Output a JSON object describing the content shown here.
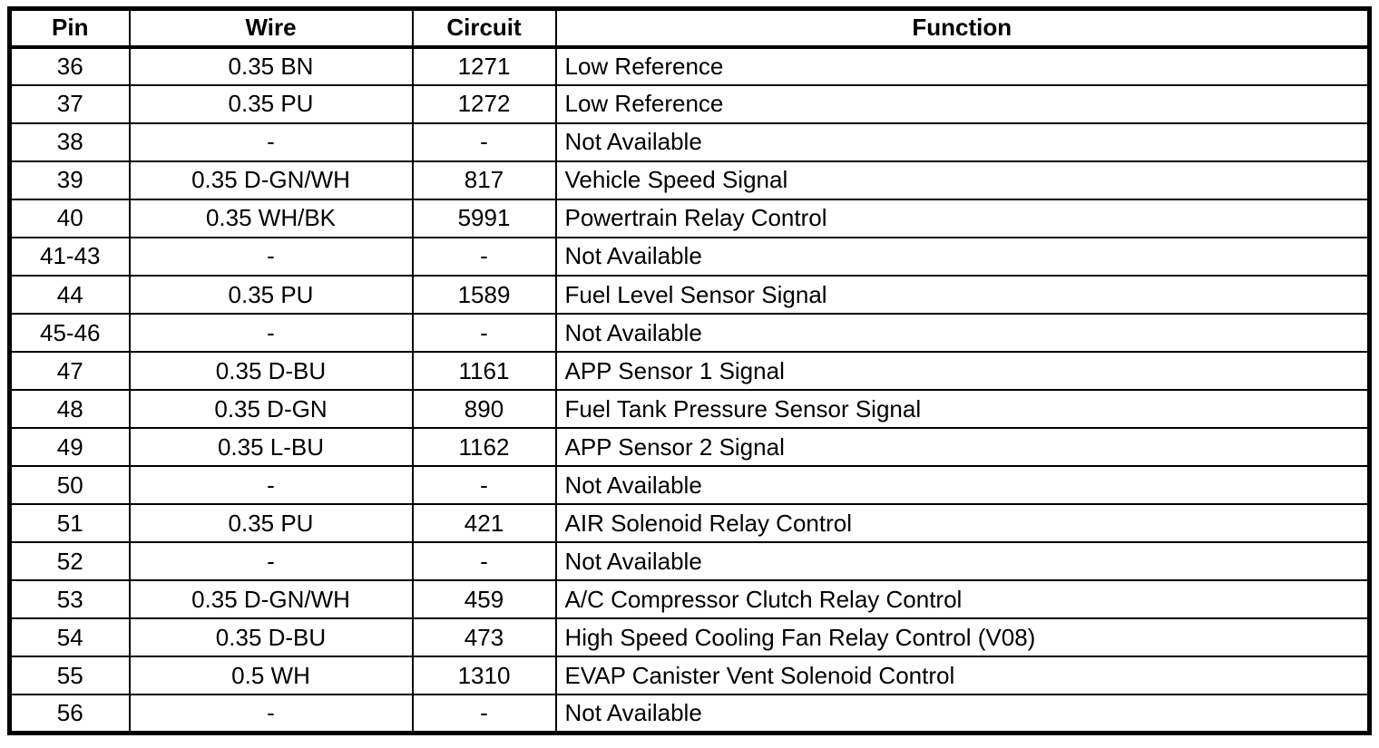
{
  "table": {
    "title": "connector-pinout-table",
    "columns": [
      {
        "key": "pin",
        "label": "Pin"
      },
      {
        "key": "wire",
        "label": "Wire"
      },
      {
        "key": "circuit",
        "label": "Circuit"
      },
      {
        "key": "function",
        "label": "Function"
      }
    ],
    "rows": [
      {
        "pin": "36",
        "wire": "0.35 BN",
        "circuit": "1271",
        "function": "Low Reference"
      },
      {
        "pin": "37",
        "wire": "0.35 PU",
        "circuit": "1272",
        "function": "Low Reference"
      },
      {
        "pin": "38",
        "wire": "-",
        "circuit": "-",
        "function": "Not Available"
      },
      {
        "pin": "39",
        "wire": "0.35 D-GN/WH",
        "circuit": "817",
        "function": "Vehicle Speed Signal"
      },
      {
        "pin": "40",
        "wire": "0.35 WH/BK",
        "circuit": "5991",
        "function": "Powertrain Relay Control"
      },
      {
        "pin": "41-43",
        "wire": "-",
        "circuit": "-",
        "function": "Not Available"
      },
      {
        "pin": "44",
        "wire": "0.35 PU",
        "circuit": "1589",
        "function": "Fuel Level Sensor Signal"
      },
      {
        "pin": "45-46",
        "wire": "-",
        "circuit": "-",
        "function": "Not Available"
      },
      {
        "pin": "47",
        "wire": "0.35 D-BU",
        "circuit": "1161",
        "function": "APP Sensor 1 Signal"
      },
      {
        "pin": "48",
        "wire": "0.35 D-GN",
        "circuit": "890",
        "function": "Fuel Tank Pressure Sensor Signal"
      },
      {
        "pin": "49",
        "wire": "0.35 L-BU",
        "circuit": "1162",
        "function": "APP Sensor 2 Signal"
      },
      {
        "pin": "50",
        "wire": "-",
        "circuit": "-",
        "function": "Not Available"
      },
      {
        "pin": "51",
        "wire": "0.35 PU",
        "circuit": "421",
        "function": "AIR Solenoid Relay Control"
      },
      {
        "pin": "52",
        "wire": "-",
        "circuit": "-",
        "function": "Not Available"
      },
      {
        "pin": "53",
        "wire": "0.35 D-GN/WH",
        "circuit": "459",
        "function": "A/C Compressor Clutch Relay Control"
      },
      {
        "pin": "54",
        "wire": "0.35 D-BU",
        "circuit": "473",
        "function": "High Speed Cooling Fan Relay Control (V08)"
      },
      {
        "pin": "55",
        "wire": "0.5 WH",
        "circuit": "1310",
        "function": "EVAP Canister Vent Solenoid Control"
      },
      {
        "pin": "56",
        "wire": "-",
        "circuit": "-",
        "function": "Not Available"
      }
    ],
    "colors": {
      "border": "#000000",
      "background": "#ffffff",
      "text": "#000000"
    }
  }
}
